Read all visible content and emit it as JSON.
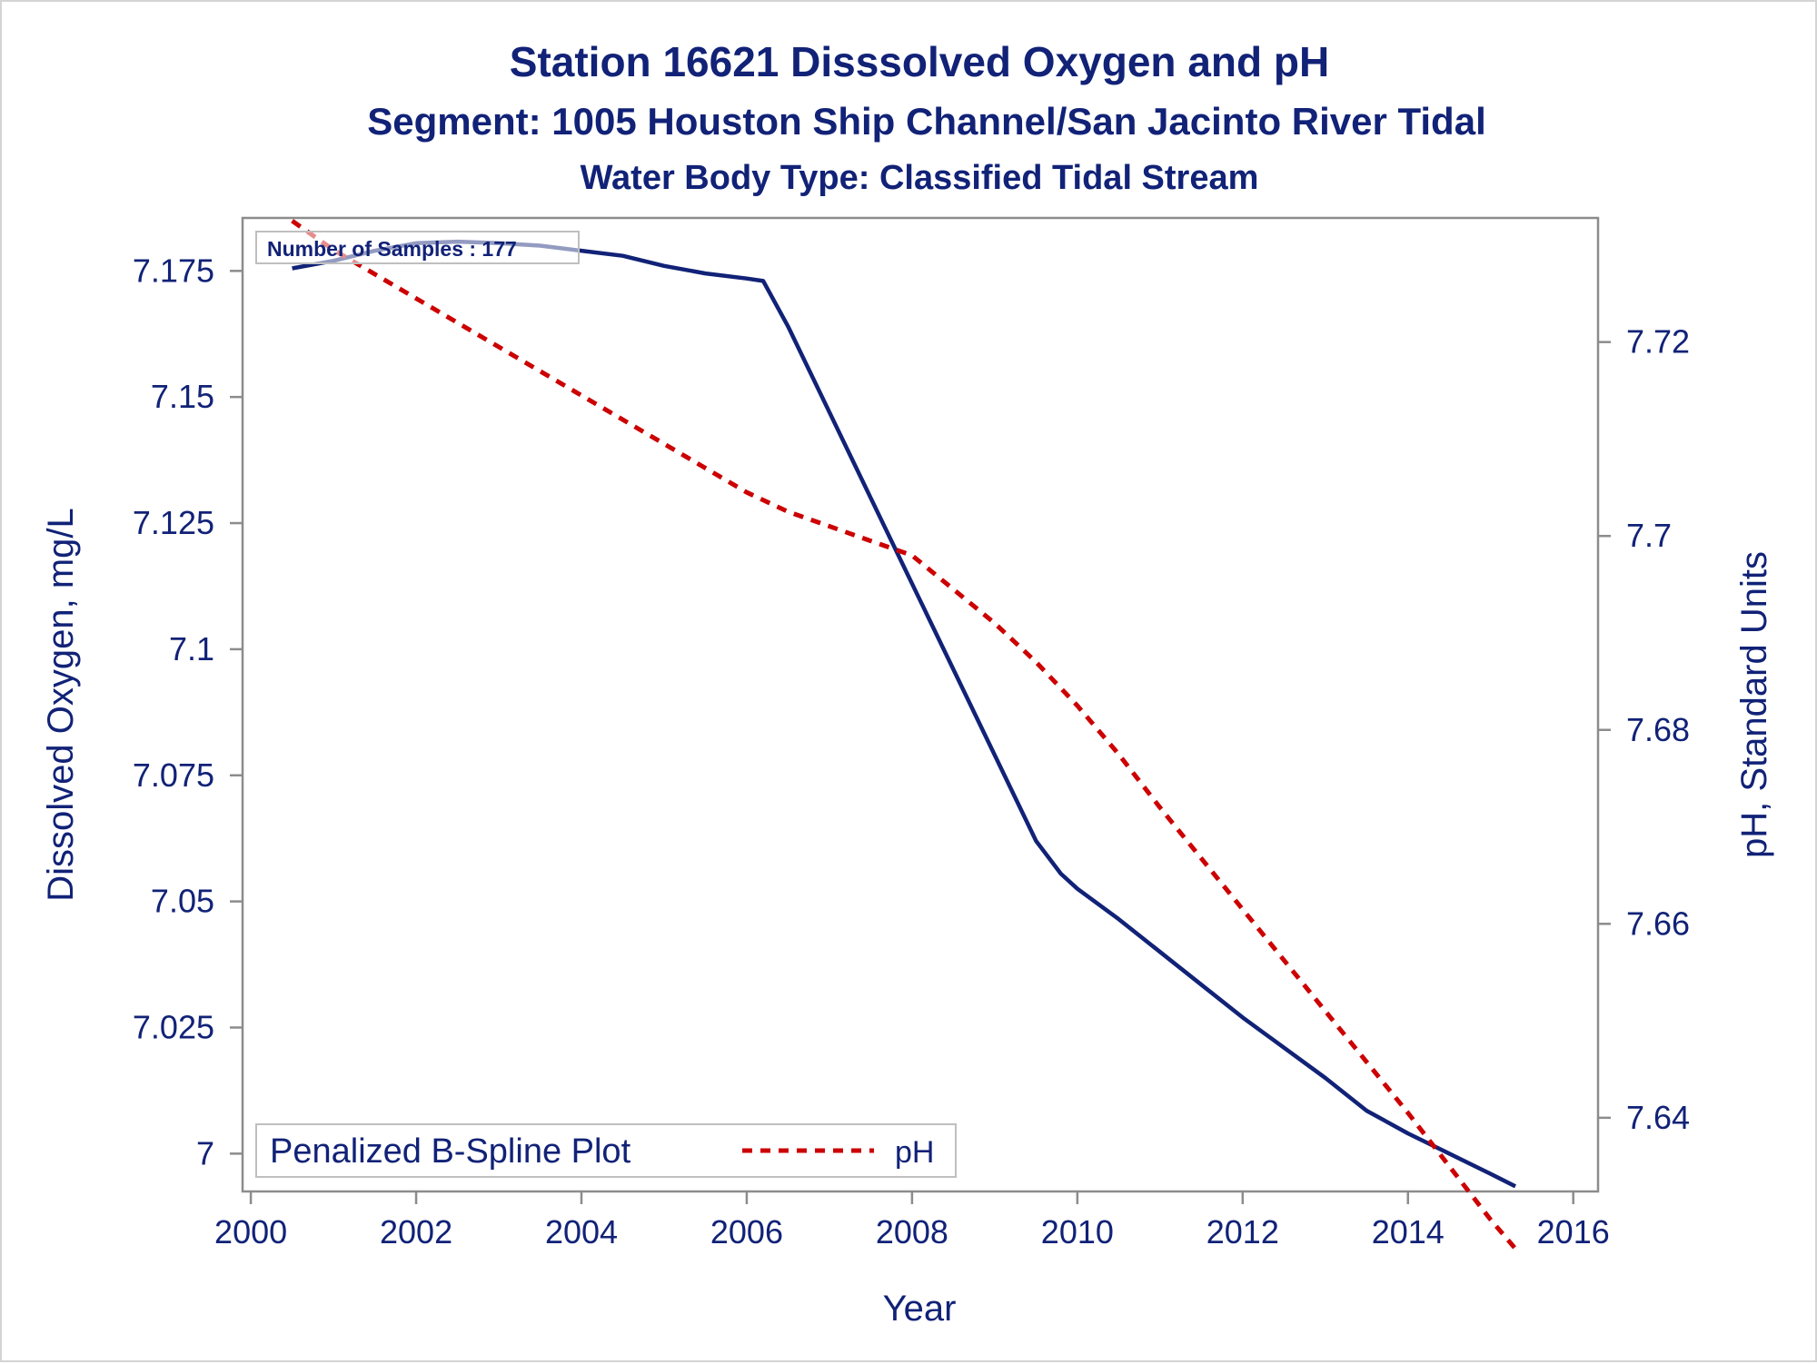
{
  "chart_data": {
    "type": "line",
    "title": "Station 16621    Disssolved Oxygen and pH",
    "subtitle": "Segment: 1005  Houston Ship Channel/San Jacinto River Tidal",
    "subtitle2": "Water Body Type: Classified Tidal Stream",
    "xlabel": "Year",
    "ylabel": "Dissolved Oxygen, mg/L",
    "y2label": "pH, Standard Units",
    "annotation": "Number of Samples : 177",
    "legend_title": "Penalized B-Spline Plot",
    "legend_position": "bottom-left",
    "grid": false,
    "xlim": [
      1999.9,
      2016.3
    ],
    "ylim": [
      6.9925,
      7.1855
    ],
    "y2lim": [
      7.6324,
      7.7328
    ],
    "x_ticks": [
      "2000",
      "2002",
      "2004",
      "2006",
      "2008",
      "2010",
      "2012",
      "2014",
      "2016"
    ],
    "y_ticks": [
      "7",
      "7.025",
      "7.05",
      "7.075",
      "7.1",
      "7.125",
      "7.15",
      "7.175"
    ],
    "y2_ticks": [
      "7.64",
      "7.66",
      "7.68",
      "7.7",
      "7.72"
    ],
    "series": [
      {
        "axis": "left",
        "color": "#112277",
        "style": "solid",
        "x": [
          2000.5,
          2001.0,
          2001.5,
          2002.0,
          2002.5,
          2003.0,
          2003.5,
          2004.0,
          2004.5,
          2005.0,
          2005.5,
          2006.0,
          2006.2,
          2006.5,
          2007.0,
          2007.5,
          2008.0,
          2008.5,
          2009.0,
          2009.5,
          2009.8,
          2010.0,
          2010.5,
          2011.0,
          2011.5,
          2012.0,
          2012.5,
          2013.0,
          2013.5,
          2014.0,
          2014.5,
          2015.0,
          2015.3
        ],
        "values": [
          7.1755,
          7.177,
          7.179,
          7.1805,
          7.1808,
          7.1805,
          7.18,
          7.179,
          7.178,
          7.176,
          7.1745,
          7.1735,
          7.173,
          7.164,
          7.147,
          7.13,
          7.113,
          7.096,
          7.079,
          7.062,
          7.0555,
          7.0525,
          7.0465,
          7.04,
          7.0335,
          7.027,
          7.021,
          7.015,
          7.0085,
          7.004,
          7.0,
          6.996,
          6.9935
        ]
      },
      {
        "name": "pH",
        "axis": "right",
        "color": "#cc0000",
        "style": "dashed",
        "x": [
          2000.5,
          2001.0,
          2002.0,
          2003.0,
          2004.0,
          2005.0,
          2006.0,
          2006.5,
          2007.0,
          2007.5,
          2008.0,
          2008.5,
          2009.0,
          2009.5,
          2010.0,
          2010.5,
          2011.0,
          2012.0,
          2013.0,
          2014.0,
          2015.0,
          2015.3
        ],
        "values": [
          7.7325,
          7.7295,
          7.7245,
          7.7195,
          7.7145,
          7.7095,
          7.7045,
          7.7025,
          7.701,
          7.6995,
          7.698,
          7.6945,
          7.691,
          7.687,
          7.6825,
          7.6775,
          7.672,
          7.6615,
          7.651,
          7.6405,
          7.6295,
          7.6265
        ]
      }
    ]
  }
}
